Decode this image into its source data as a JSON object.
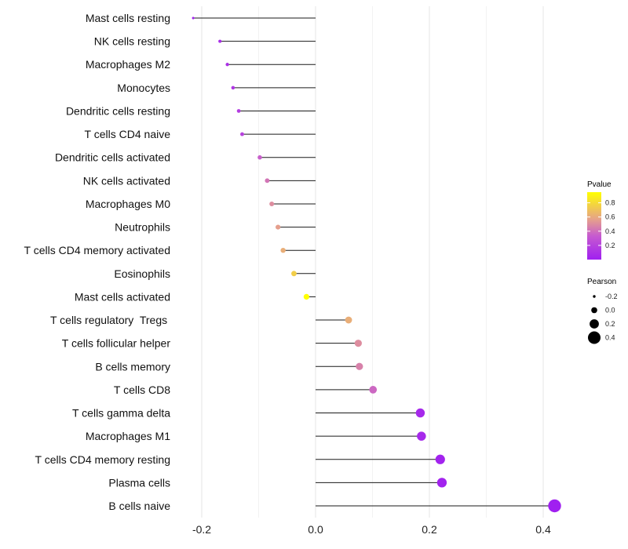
{
  "chart_data": {
    "type": "lollipop",
    "x_ticks": [
      -0.2,
      0.0,
      0.2,
      0.4
    ],
    "x_tick_labels": [
      "-0.2",
      "0.0",
      "0.2",
      "0.4"
    ],
    "xlim": [
      -0.24,
      0.455
    ],
    "categories": [
      "Mast cells resting",
      "NK cells resting",
      "Macrophages M2",
      "Monocytes",
      "Dendritic cells resting",
      "T cells CD4 naive",
      "Dendritic cells activated",
      "NK cells activated",
      "Macrophages M0",
      "Neutrophils",
      "T cells CD4 memory activated",
      "Eosinophils",
      "Mast cells activated",
      "T cells regulatory  Tregs ",
      "T cells follicular helper",
      "B cells memory",
      "T cells CD8",
      "T cells gamma delta",
      "Macrophages M1",
      "T cells CD4 memory resting",
      "Plasma cells",
      "B cells naive"
    ],
    "pearson": [
      -0.215,
      -0.168,
      -0.155,
      -0.145,
      -0.135,
      -0.129,
      -0.098,
      -0.085,
      -0.077,
      -0.066,
      -0.057,
      -0.038,
      -0.016,
      0.058,
      0.075,
      0.077,
      0.101,
      0.184,
      0.186,
      0.219,
      0.222,
      0.42
    ],
    "pvalue": [
      0.02,
      0.08,
      0.1,
      0.13,
      0.17,
      0.2,
      0.35,
      0.42,
      0.5,
      0.56,
      0.62,
      0.75,
      0.95,
      0.62,
      0.5,
      0.46,
      0.38,
      0.05,
      0.05,
      0.02,
      0.02,
      0.0
    ],
    "color_legend": {
      "title": "Pvalue",
      "ticks": [
        0.8,
        0.6,
        0.4,
        0.2
      ],
      "tick_labels": [
        "0.8",
        "0.6",
        "0.4",
        "0.2"
      ],
      "range": [
        0.0,
        0.95
      ],
      "low_color": "#a020f0",
      "high_color": "#ffff00"
    },
    "size_legend": {
      "title": "Pearson",
      "values": [
        -0.2,
        0.0,
        0.2,
        0.4
      ],
      "labels": [
        "-0.2",
        "0.0",
        "0.2",
        "0.4"
      ]
    }
  }
}
